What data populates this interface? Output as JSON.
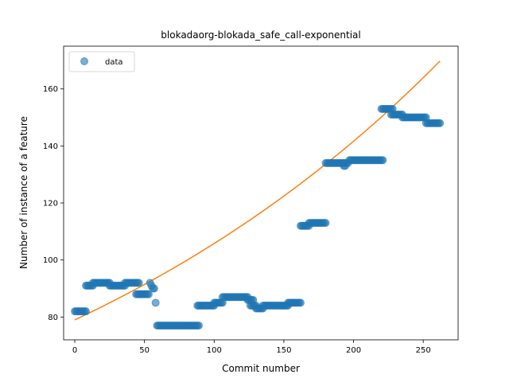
{
  "chart_data": {
    "type": "scatter",
    "title": "blokadaorg-blokada_safe_call-exponential",
    "xlabel": "Commit number",
    "ylabel": "Number of instance of a feature",
    "xlim": [
      -8,
      275
    ],
    "ylim": [
      72,
      175
    ],
    "xticks": [
      0,
      50,
      100,
      150,
      200,
      250
    ],
    "yticks": [
      80,
      100,
      120,
      140,
      160
    ],
    "legend": {
      "placement": "upper-left",
      "entries": [
        "data"
      ]
    },
    "colors": {
      "data": "#1f77b4",
      "fit": "#ff7f0e"
    },
    "segments": [
      {
        "x0": 0,
        "x1": 8,
        "y": 82
      },
      {
        "x0": 8,
        "x1": 13,
        "y": 91
      },
      {
        "x0": 13,
        "x1": 25,
        "y": 92
      },
      {
        "x0": 25,
        "x1": 36,
        "y": 91
      },
      {
        "x0": 36,
        "x1": 46,
        "y": 92
      },
      {
        "x0": 44,
        "x1": 53,
        "y": 88
      },
      {
        "x0": 60,
        "x1": 89,
        "y": 77
      },
      {
        "x0": 88,
        "x1": 100,
        "y": 84
      },
      {
        "x0": 100,
        "x1": 106,
        "y": 85
      },
      {
        "x0": 106,
        "x1": 124,
        "y": 87
      },
      {
        "x0": 124,
        "x1": 128,
        "y": 86
      },
      {
        "x0": 126,
        "x1": 130,
        "y": 84
      },
      {
        "x0": 130,
        "x1": 135,
        "y": 83
      },
      {
        "x0": 135,
        "x1": 153,
        "y": 84
      },
      {
        "x0": 153,
        "x1": 162,
        "y": 85
      },
      {
        "x0": 162,
        "x1": 168,
        "y": 112
      },
      {
        "x0": 168,
        "x1": 180,
        "y": 113
      },
      {
        "x0": 180,
        "x1": 196,
        "y": 134
      },
      {
        "x0": 197,
        "x1": 221,
        "y": 135
      },
      {
        "x0": 220,
        "x1": 228,
        "y": 153
      },
      {
        "x0": 227,
        "x1": 235,
        "y": 151
      },
      {
        "x0": 235,
        "x1": 252,
        "y": 150
      },
      {
        "x0": 252,
        "x1": 262,
        "y": 148
      }
    ],
    "extra_points": [
      {
        "x": 54,
        "y": 92
      },
      {
        "x": 55,
        "y": 91
      },
      {
        "x": 56,
        "y": 90
      },
      {
        "x": 57,
        "y": 90
      },
      {
        "x": 58,
        "y": 85
      },
      {
        "x": 59,
        "y": 77
      },
      {
        "x": 193,
        "y": 133
      },
      {
        "x": 194,
        "y": 133
      }
    ],
    "fit": {
      "a": 79.0,
      "b": 0.00292,
      "x_start": 0,
      "x_end": 262
    }
  }
}
